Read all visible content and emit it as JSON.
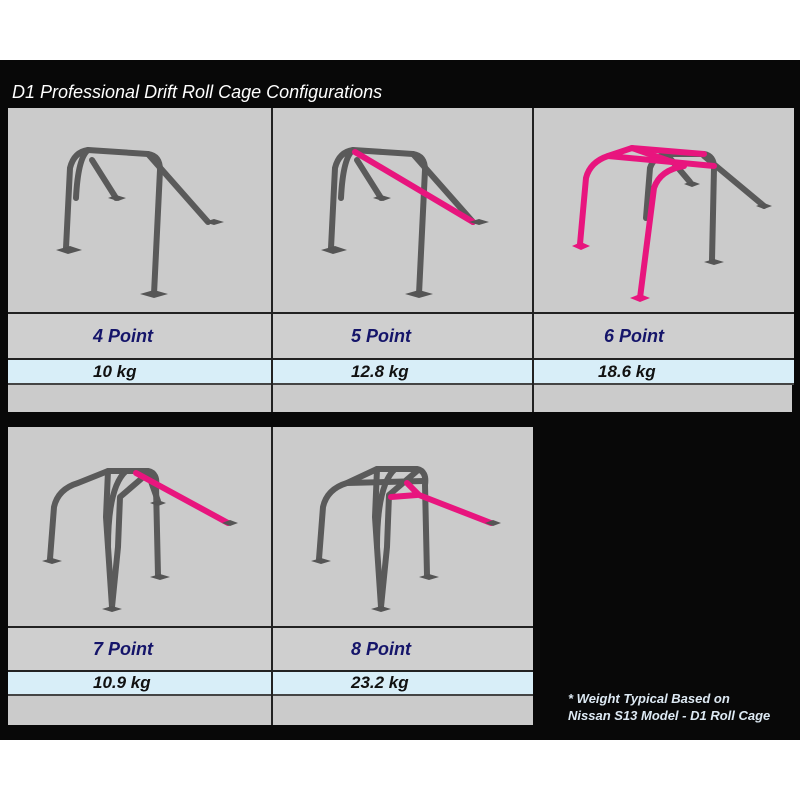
{
  "title": "D1 Professional Drift Roll Cage Configurations",
  "configurations": [
    {
      "label": "4 Point",
      "weight": "10 kg"
    },
    {
      "label": "5 Point",
      "weight": "12.8 kg"
    },
    {
      "label": "6 Point",
      "weight": "18.6 kg"
    },
    {
      "label": "7 Point",
      "weight": "10.9 kg"
    },
    {
      "label": "8 Point",
      "weight": "23.2 kg"
    }
  ],
  "note": {
    "line1": "* Weight Typical Based on",
    "line2": "Nissan S13 Model - D1 Roll Cage"
  },
  "colors": {
    "background": "#080808",
    "panel": "#cbcbcb",
    "weight_row": "#d8eef8",
    "label_text": "#15156a",
    "highlight_tube": "#e8157e",
    "tube": "#5a5a5a"
  }
}
